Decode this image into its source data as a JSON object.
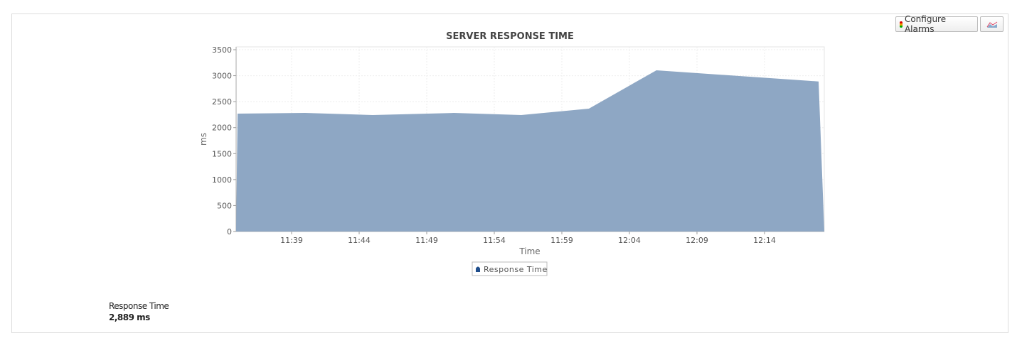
{
  "toolbar": {
    "configure_alarms": "Configure Alarms",
    "chart_icon": "area-chart-icon"
  },
  "chart_data": {
    "type": "area",
    "title": "SERVER RESPONSE TIME",
    "xlabel": "Time",
    "ylabel": "ms",
    "ylim": [
      0,
      3500
    ],
    "yticks": [
      0,
      500,
      1000,
      1500,
      2000,
      2500,
      3000,
      3500
    ],
    "xticks": [
      "11:39",
      "11:44",
      "11:49",
      "11:54",
      "11:59",
      "12:04",
      "12:09",
      "12:14"
    ],
    "series": [
      {
        "name": "Response Time",
        "color": "#8ea7c4",
        "x": [
          "11:35",
          "11:40",
          "11:45",
          "11:51",
          "11:56",
          "12:01",
          "12:06",
          "12:18"
        ],
        "values": [
          2270,
          2283,
          2242,
          2283,
          2242,
          2365,
          3104,
          2889
        ]
      }
    ],
    "legend": "bottom-center",
    "grid": true
  },
  "summary": {
    "label": "Response Time",
    "value": "2,889 ms"
  }
}
